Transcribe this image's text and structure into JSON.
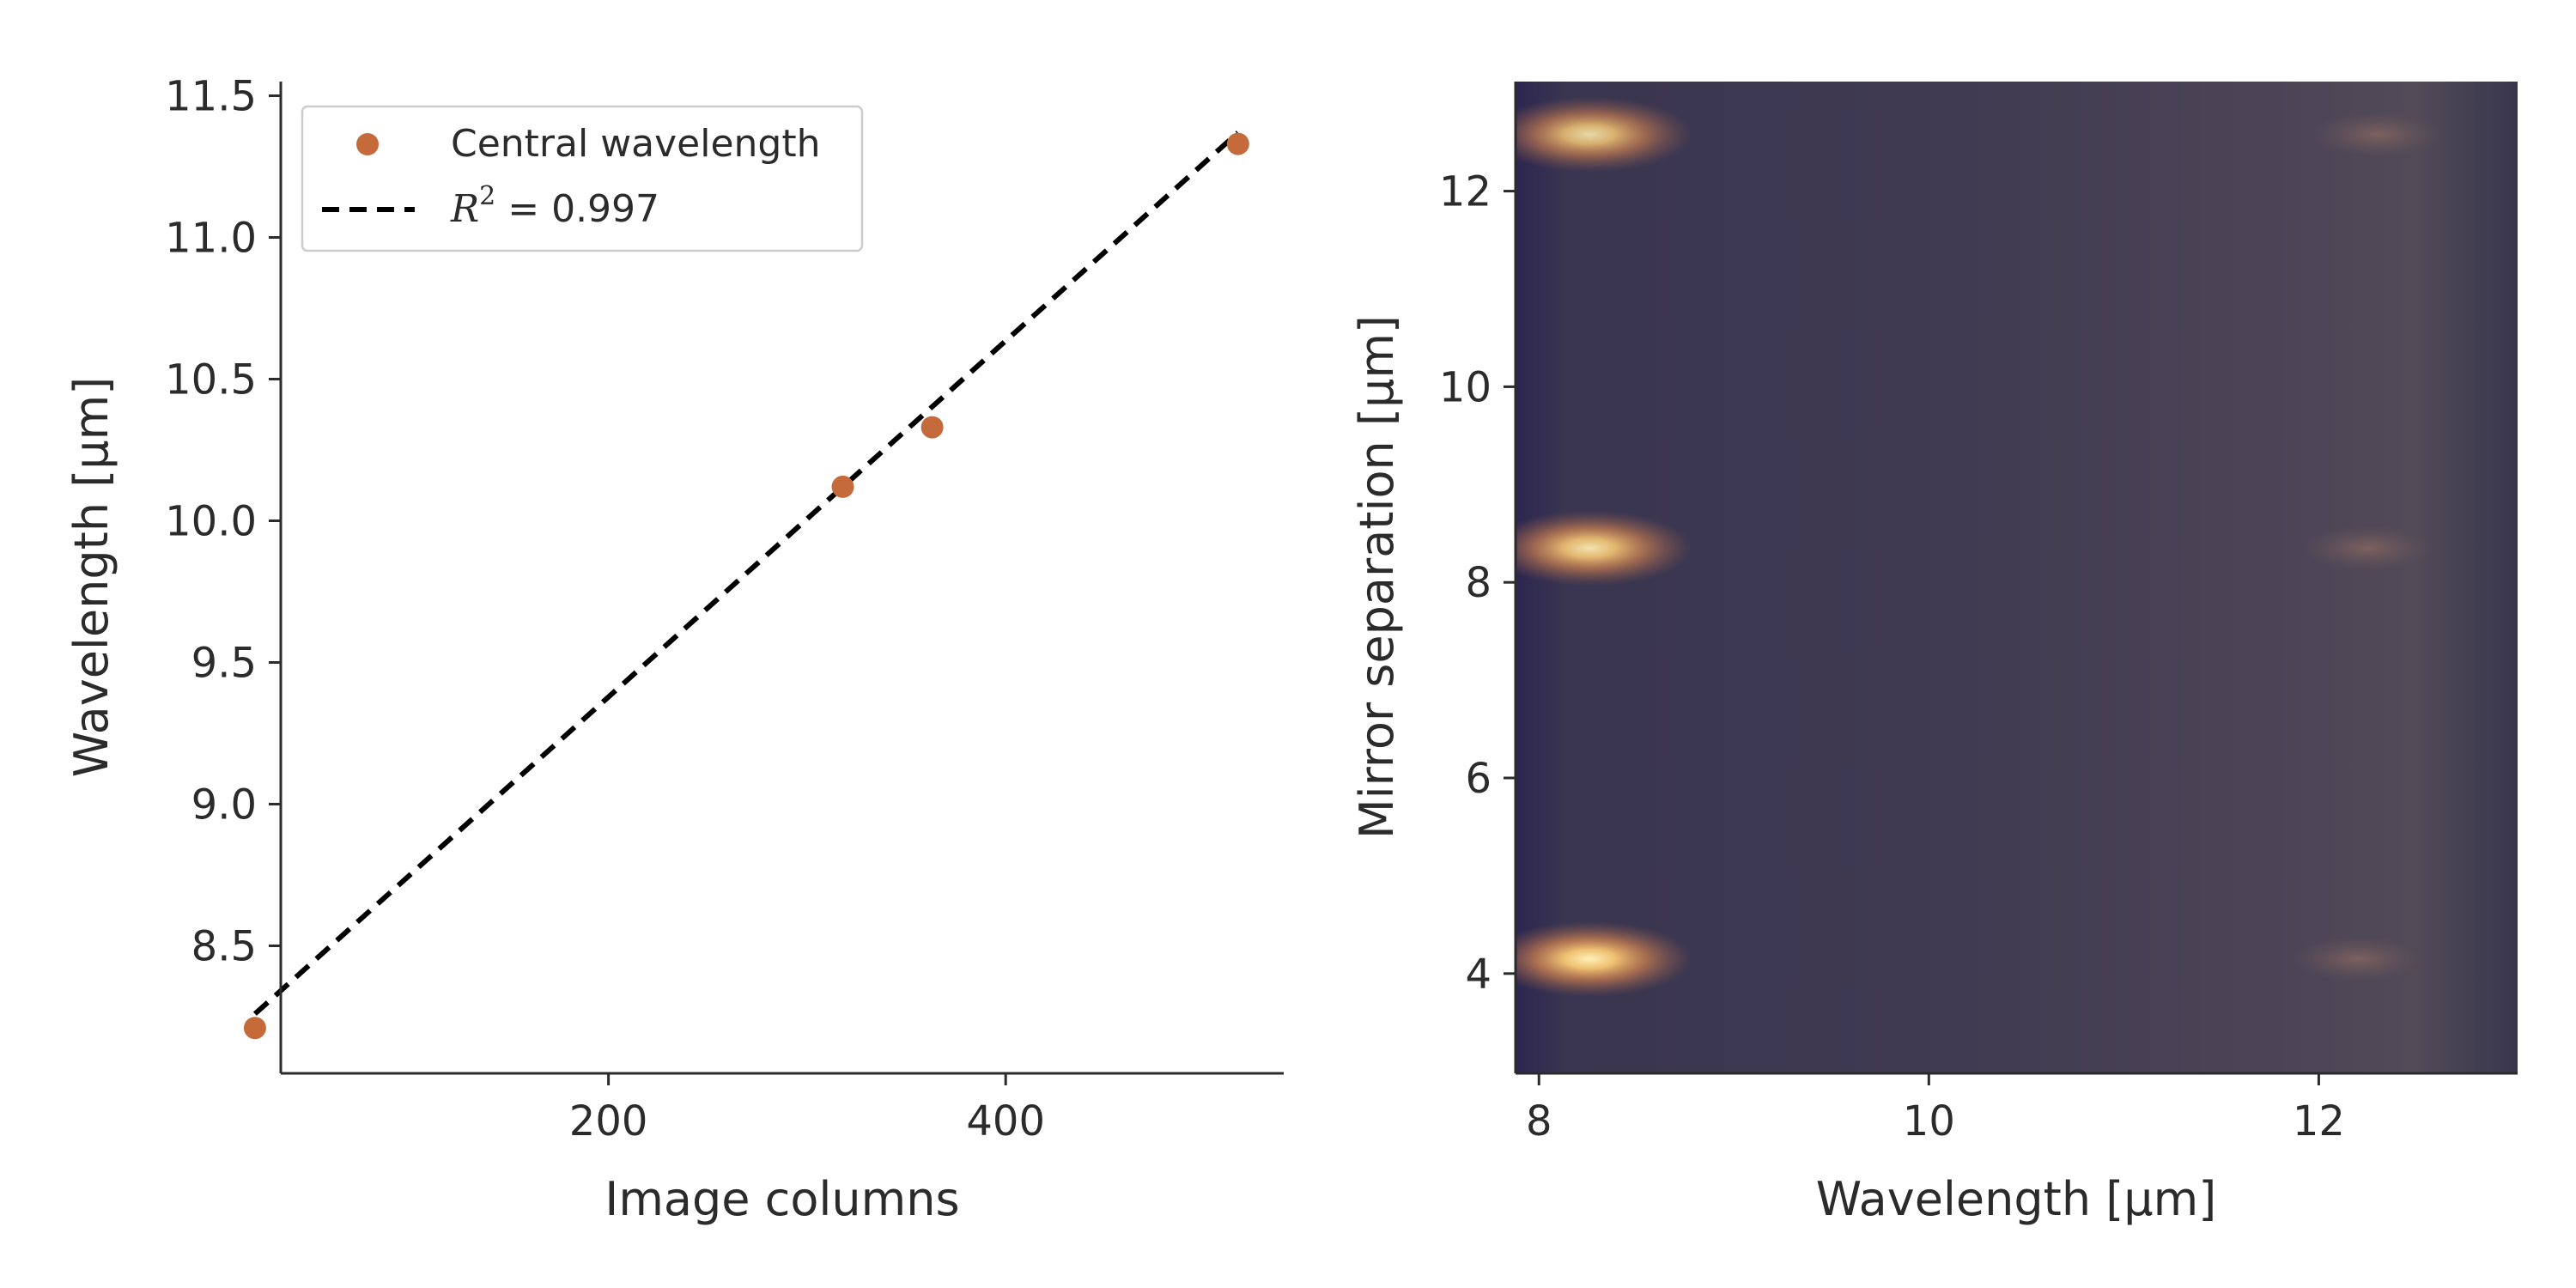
{
  "colors": {
    "points": "#c56a3a",
    "fit_line": "#000000",
    "axis": "#2b2b2b",
    "heatmap_background": "#3f3a52",
    "heatmap_dark_edge": "#2c2650",
    "heatmap_peak": "#fbe3a2"
  },
  "chart_data": [
    {
      "type": "scatter",
      "title": "",
      "xlabel": "Image columns",
      "ylabel": "Wavelength [µm]",
      "xlim": [
        35,
        540
      ],
      "ylim": [
        8.05,
        11.55
      ],
      "xticks": [
        200,
        400
      ],
      "xtick_labels": [
        "200",
        "400"
      ],
      "yticks": [
        8.5,
        9.0,
        9.5,
        10.0,
        10.5,
        11.0,
        11.5
      ],
      "ytick_labels": [
        "8.5",
        "9.0",
        "9.5",
        "10.0",
        "10.5",
        "11.0",
        "11.5"
      ],
      "grid": false,
      "legend_position": "top-left",
      "series": [
        {
          "name": "Central wavelength",
          "kind": "scatter",
          "x": [
            22,
            318,
            363,
            517
          ],
          "y": [
            8.21,
            10.12,
            10.33,
            11.33
          ]
        },
        {
          "name_prefix": "R",
          "name_superscript": "2",
          "name_suffix": " = 0.997",
          "kind": "line",
          "style": "dashed",
          "x": [
            22,
            517
          ],
          "y": [
            8.26,
            11.37
          ]
        }
      ]
    },
    {
      "type": "heatmap",
      "title": "",
      "xlabel": "Wavelength [µm]",
      "ylabel": "Mirror separation [µm]",
      "xlim": [
        7.88,
        13.02
      ],
      "ylim": [
        2.98,
        13.12
      ],
      "xticks": [
        8,
        10,
        12
      ],
      "xtick_labels": [
        "8",
        "10",
        "12"
      ],
      "yticks": [
        4,
        6,
        8,
        10,
        12
      ],
      "ytick_labels": [
        "4",
        "6",
        "8",
        "10",
        "12"
      ],
      "grid": false,
      "blobs": [
        {
          "x": 8.26,
          "y": 4.15,
          "intensity": 1.0
        },
        {
          "x": 8.26,
          "y": 8.35,
          "intensity": 0.85
        },
        {
          "x": 8.26,
          "y": 12.58,
          "intensity": 0.72
        },
        {
          "x": 12.2,
          "y": 4.15,
          "intensity": 0.12
        },
        {
          "x": 12.25,
          "y": 8.35,
          "intensity": 0.12
        },
        {
          "x": 12.3,
          "y": 12.58,
          "intensity": 0.1
        }
      ]
    }
  ]
}
